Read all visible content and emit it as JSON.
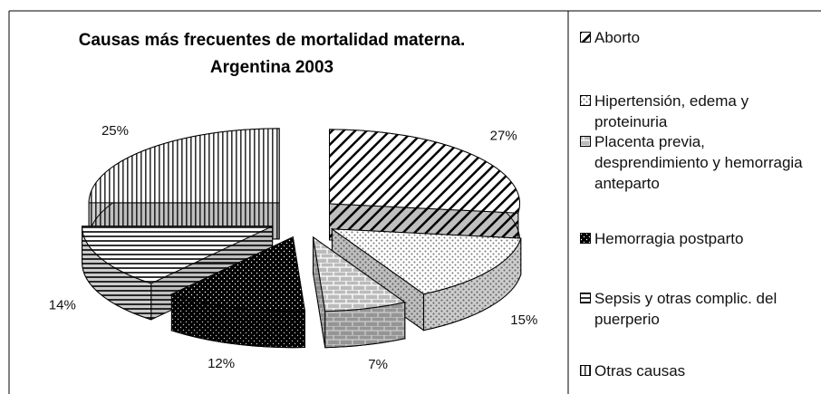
{
  "chart_data": {
    "type": "pie",
    "title": "Causas más frecuentes de mortalidad materna. Argentina 2003",
    "categories": [
      "Aborto",
      "Hipertensión, edema y proteinuria",
      "Placenta previa, desprendimiento y hemorragia anteparto",
      "Hemorragia postparto",
      "Sepsis y otras complic. del puerperio",
      "Otras causas"
    ],
    "values": [
      27,
      15,
      7,
      12,
      14,
      25
    ],
    "value_labels": [
      "27%",
      "15%",
      "7%",
      "12%",
      "14%",
      "25%"
    ],
    "colors": [
      "#ffffff",
      "#d8d8d8",
      "#bdbdbd",
      "#000000",
      "#ffffff",
      "#ffffff"
    ],
    "legend": "right"
  }
}
